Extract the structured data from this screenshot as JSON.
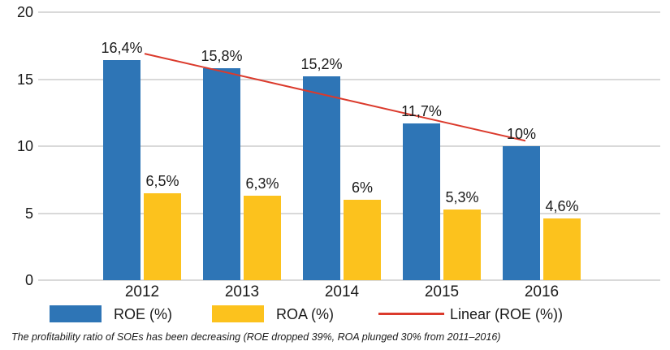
{
  "chart_data": {
    "type": "bar",
    "title": "",
    "xlabel": "",
    "ylabel": "",
    "categories": [
      "2012",
      "2013",
      "2014",
      "2015",
      "2016"
    ],
    "series": [
      {
        "name": "ROE (%)",
        "color": "#2E75B6",
        "values": [
          16.4,
          15.8,
          15.2,
          11.7,
          10
        ],
        "labels": [
          "16,4%",
          "15,8%",
          "15,2%",
          "11,7%",
          "10%"
        ]
      },
      {
        "name": "ROA (%)",
        "color": "#FCC21D",
        "values": [
          6.5,
          6.3,
          6,
          5.3,
          4.6
        ],
        "labels": [
          "6,5%",
          "6,3%",
          "6%",
          "5,3%",
          "4,6%"
        ]
      }
    ],
    "trendline": {
      "name": "Linear (ROE (%))",
      "color": "#DB3A2C",
      "series_ref": "ROE (%)",
      "start_value": 16.9,
      "end_value": 10.4
    },
    "y_axis": {
      "min": 0,
      "max": 20,
      "ticks": [
        0,
        5,
        10,
        15,
        20
      ],
      "tick_labels": [
        "0",
        "5",
        "10",
        "15",
        "20"
      ]
    },
    "grid": true,
    "legend_position": "bottom"
  },
  "colors": {
    "roe_bar": "#2E75B6",
    "roa_bar": "#FCC21D",
    "trend_line": "#DB3A2C",
    "gridline": "#d9d9d9",
    "text": "#1a1a1a"
  },
  "caption": "The profitability ratio of SOEs has been decreasing (ROE dropped 39%, ROA plunged 30% from 2011–2016)"
}
